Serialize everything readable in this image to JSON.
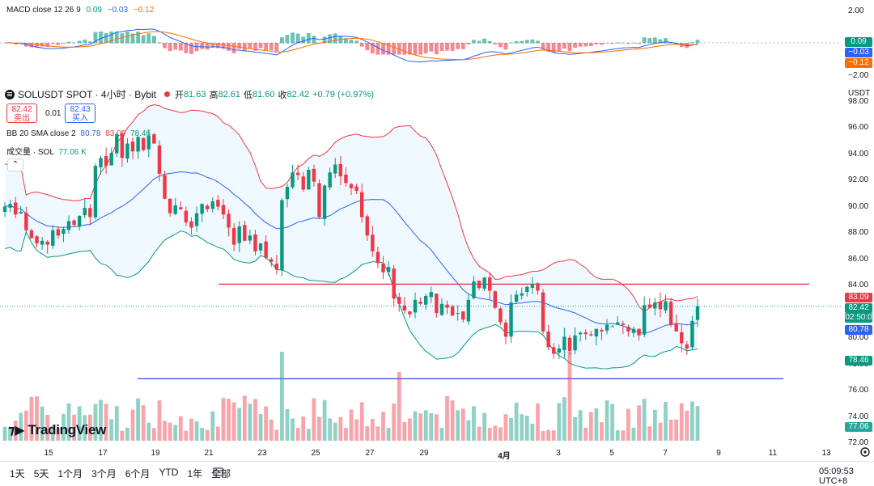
{
  "macd": {
    "label": "MACD close 12 26 9",
    "val1": "0.09",
    "val2": "−0.03",
    "val3": "−0.12",
    "axis_top": "2.00",
    "axis_bottom": "−2.00",
    "badge_hist": "0.09",
    "badge_macd": "−0.03",
    "badge_signal": "−0.12"
  },
  "symbol": {
    "title": "SOLUSDT SPOT · 4小时 · Bybit",
    "open_label": "开",
    "open": "81.63",
    "high_label": "高",
    "high": "82.61",
    "low_label": "低",
    "low": "81.60",
    "close_label": "收",
    "close": "82.42",
    "change": "+0.79 (+0.97%)"
  },
  "trade": {
    "sell_price": "82.42",
    "sell_label": "卖出",
    "spread": "0.01",
    "buy_price": "82.43",
    "buy_label": "买入"
  },
  "bb": {
    "label": "BB 20 SMA close 2",
    "basis": "80.78",
    "upper": "83.09",
    "lower": "78.46"
  },
  "volume": {
    "label": "成交量 · SOL",
    "value": "77.06 K"
  },
  "price_axis": {
    "unit": "USDT",
    "ticks": [
      "98.00",
      "96.00",
      "94.00",
      "92.00",
      "90.00",
      "88.00",
      "86.00",
      "84.00",
      "82.00",
      "80.00",
      "78.00",
      "76.00",
      "74.00",
      "72.00"
    ],
    "badge_upper": "83.09",
    "badge_price": "82.42",
    "badge_countdown": "02:50:0",
    "badge_basis": "80.78",
    "badge_lower": "78.46",
    "badge_volume": "77.06 K"
  },
  "time_axis": [
    "15",
    "17",
    "19",
    "21",
    "23",
    "25",
    "27",
    "29",
    "4月",
    "3",
    "5",
    "7",
    "9",
    "11",
    "13"
  ],
  "brand": "TradingView",
  "ranges": [
    "1天",
    "5天",
    "1个月",
    "3个月",
    "6个月",
    "YTD",
    "1年",
    "全部"
  ],
  "clock": "05:09:53 UTC+8",
  "colors": {
    "up": "#089981",
    "down": "#f23645",
    "bb_upper": "#f23645",
    "bb_lower": "#089981",
    "bb_basis": "#2962ff",
    "hline_red": "#e0313f",
    "hline_blue": "#2450d8"
  },
  "chart_data": {
    "type": "candlestick",
    "ylim": [
      72,
      99
    ],
    "resistance_line": 84.1,
    "support_line": 76.9,
    "closes": [
      90,
      90.2,
      89.4,
      89.6,
      88.2,
      87.6,
      87.2,
      87.4,
      87.1,
      88.2,
      87.8,
      88.3,
      88.9,
      88.6,
      89.3,
      89.9,
      89.2,
      93.1,
      93.7,
      93.1,
      94.1,
      95.5,
      93.7,
      94.8,
      94.2,
      95.3,
      94.3,
      95.4,
      94.8,
      92.5,
      90.6,
      89.5,
      90.1,
      89.8,
      88.8,
      88.4,
      89.5,
      90.2,
      89.8,
      90.4,
      90.0,
      89.4,
      88.4,
      87.1,
      88.5,
      87.4,
      87.8,
      86.6,
      87.2,
      86.1,
      85.8,
      85.2,
      90.5,
      91.5,
      92.6,
      92.4,
      91.3,
      92.8,
      91.9,
      89.2,
      91.6,
      92.6,
      93.2,
      92.3,
      91.8,
      91.4,
      91.2,
      89.2,
      87.8,
      86.6,
      85.7,
      85.0,
      85.4,
      83.0,
      82.6,
      82.1,
      81.8,
      82.9,
      82.6,
      83.2,
      83.5,
      81.9,
      82.6,
      82.3,
      81.7,
      81.9,
      81.4,
      82.9,
      84.3,
      83.8,
      84.6,
      83.6,
      82.3,
      81.2,
      80.1,
      82.7,
      83.3,
      83.4,
      83.9,
      84.1,
      83.6,
      80.5,
      79.3,
      78.8,
      79.2,
      80.1,
      79.0,
      80.2,
      80.4,
      80.3,
      80.2,
      80.7,
      80.5,
      81.0,
      80.9,
      81.2,
      81.0,
      80.5,
      80.7,
      80.2,
      82.5,
      82.3,
      82.7,
      82.2,
      82.8,
      81.0,
      80.5,
      79.6,
      79.2,
      81.3,
      82.42
    ]
  }
}
